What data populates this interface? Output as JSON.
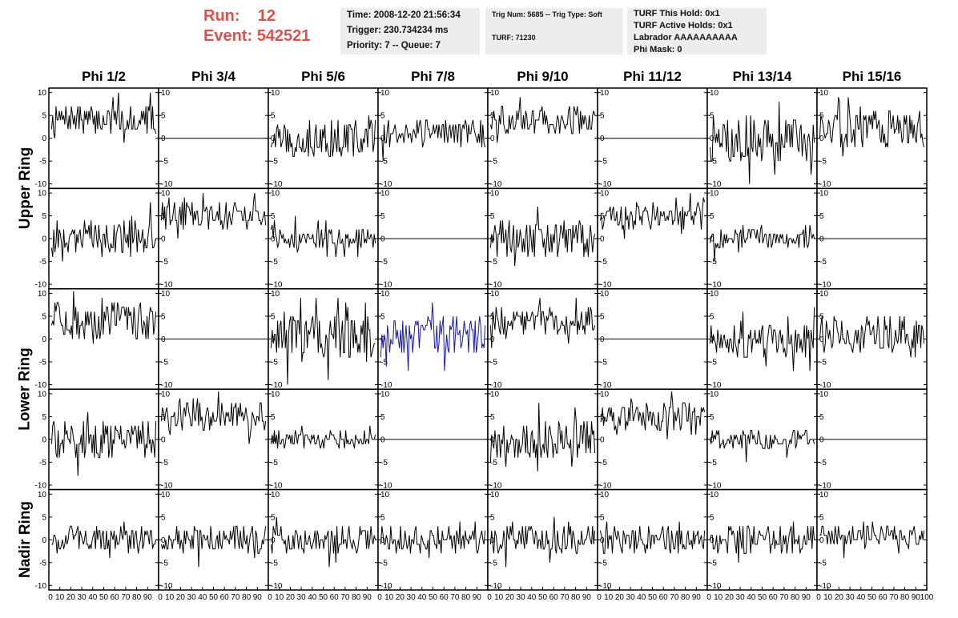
{
  "header": {
    "run_label": "Run:",
    "run_value": "12",
    "event_label": "Event:",
    "event_value": "542521"
  },
  "info_box_1": {
    "time": "Time: 2008-12-20 21:56:34",
    "trigger": "Trigger: 230.734234 ms",
    "priority": "Priority: 7 -- Queue: 7"
  },
  "info_box_2": {
    "trig": "Trig Num: 5685 -- Trig Type: Soft",
    "turf": "TURF: 71230"
  },
  "info_box_3": {
    "this_hold": "TURF This Hold: 0x1",
    "active_holds": "TURF Active Holds: 0x1",
    "labrador": "Labrador AAAAAAAAAA",
    "phi_mask": "Phi Mask: 0"
  },
  "columns": [
    "Phi 1/2",
    "Phi 3/4",
    "Phi 5/6",
    "Phi 7/8",
    "Phi 9/10",
    "Phi 11/12",
    "Phi 13/14",
    "Phi 15/16"
  ],
  "row_groups": [
    "Upper Ring",
    "Lower Ring",
    "Nadir Ring"
  ],
  "chart_data": {
    "type": "line",
    "xlim": [
      0,
      100
    ],
    "ylim": [
      -11,
      11
    ],
    "y_ticks": [
      -10,
      -5,
      0,
      5,
      10
    ],
    "x_ticks": [
      0,
      10,
      20,
      30,
      40,
      50,
      60,
      70,
      80,
      90,
      100
    ],
    "x_tick_labels": [
      "0",
      "10",
      "20",
      "30",
      "40",
      "50",
      "60",
      "70",
      "80",
      "90",
      "100"
    ],
    "colors": {
      "default": "#000000",
      "highlight": "#1a1a9c"
    },
    "highlighted_panel": {
      "row": 2,
      "col": 3
    },
    "panels": [
      [
        {
          "flat": false,
          "mean": 4,
          "amp": 3
        },
        {
          "flat": true,
          "mean": 0,
          "amp": 0
        },
        {
          "flat": false,
          "mean": 0,
          "amp": 4
        },
        {
          "flat": false,
          "mean": 1,
          "amp": 3
        },
        {
          "flat": false,
          "mean": 4,
          "amp": 3
        },
        {
          "flat": true,
          "mean": 0,
          "amp": 0
        },
        {
          "flat": false,
          "mean": 0,
          "amp": 5
        },
        {
          "flat": false,
          "mean": 2,
          "amp": 4
        }
      ],
      [
        {
          "flat": false,
          "mean": 0,
          "amp": 4
        },
        {
          "flat": false,
          "mean": 5,
          "amp": 3
        },
        {
          "flat": false,
          "mean": 0,
          "amp": 2
        },
        {
          "flat": true,
          "mean": 0,
          "amp": 0
        },
        {
          "flat": false,
          "mean": 0,
          "amp": 4
        },
        {
          "flat": false,
          "mean": 5,
          "amp": 3
        },
        {
          "flat": false,
          "mean": 0,
          "amp": 2
        },
        {
          "flat": true,
          "mean": 0,
          "amp": 0
        }
      ],
      [
        {
          "flat": false,
          "mean": 4,
          "amp": 4
        },
        {
          "flat": true,
          "mean": 0,
          "amp": 0
        },
        {
          "flat": false,
          "mean": 0,
          "amp": 5
        },
        {
          "flat": false,
          "mean": 1,
          "amp": 4
        },
        {
          "flat": false,
          "mean": 4,
          "amp": 3
        },
        {
          "flat": true,
          "mean": 0,
          "amp": 0
        },
        {
          "flat": false,
          "mean": 0,
          "amp": 4
        },
        {
          "flat": false,
          "mean": 1,
          "amp": 4
        }
      ],
      [
        {
          "flat": false,
          "mean": 0,
          "amp": 4
        },
        {
          "flat": false,
          "mean": 5,
          "amp": 3
        },
        {
          "flat": false,
          "mean": 0,
          "amp": 2
        },
        {
          "flat": true,
          "mean": 0,
          "amp": 0
        },
        {
          "flat": false,
          "mean": 0,
          "amp": 4
        },
        {
          "flat": false,
          "mean": 5,
          "amp": 3
        },
        {
          "flat": false,
          "mean": 0,
          "amp": 2
        },
        {
          "flat": true,
          "mean": 0,
          "amp": 0
        }
      ],
      [
        {
          "flat": false,
          "mean": 0,
          "amp": 3
        },
        {
          "flat": false,
          "mean": 0,
          "amp": 3
        },
        {
          "flat": false,
          "mean": 0,
          "amp": 3
        },
        {
          "flat": false,
          "mean": 0,
          "amp": 3
        },
        {
          "flat": false,
          "mean": 0,
          "amp": 3
        },
        {
          "flat": false,
          "mean": 0,
          "amp": 3
        },
        {
          "flat": false,
          "mean": 0,
          "amp": 3
        },
        {
          "flat": false,
          "mean": 1,
          "amp": 2
        }
      ]
    ]
  }
}
